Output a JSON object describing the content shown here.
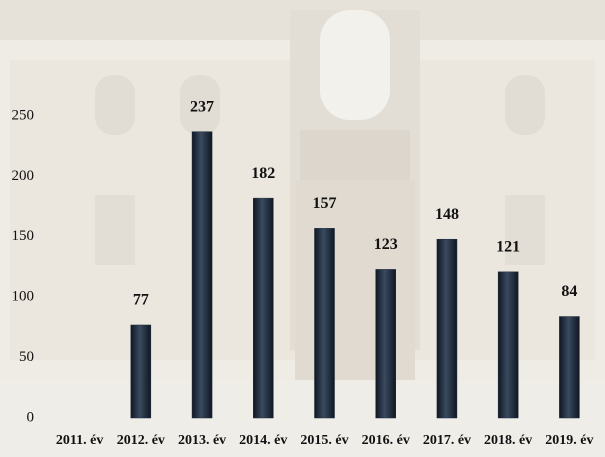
{
  "chart_data": {
    "type": "bar",
    "categories": [
      "2011. év",
      "2012. év",
      "2013. év",
      "2014. év",
      "2015. év",
      "2016. év",
      "2017. év",
      "2018. év",
      "2019. év"
    ],
    "values": [
      null,
      77,
      237,
      182,
      157,
      123,
      148,
      121,
      84
    ],
    "color": "#1f2b3c",
    "ylim": [
      0,
      250
    ],
    "yticks": [
      0,
      50,
      100,
      150,
      200,
      250
    ],
    "grid": false
  }
}
